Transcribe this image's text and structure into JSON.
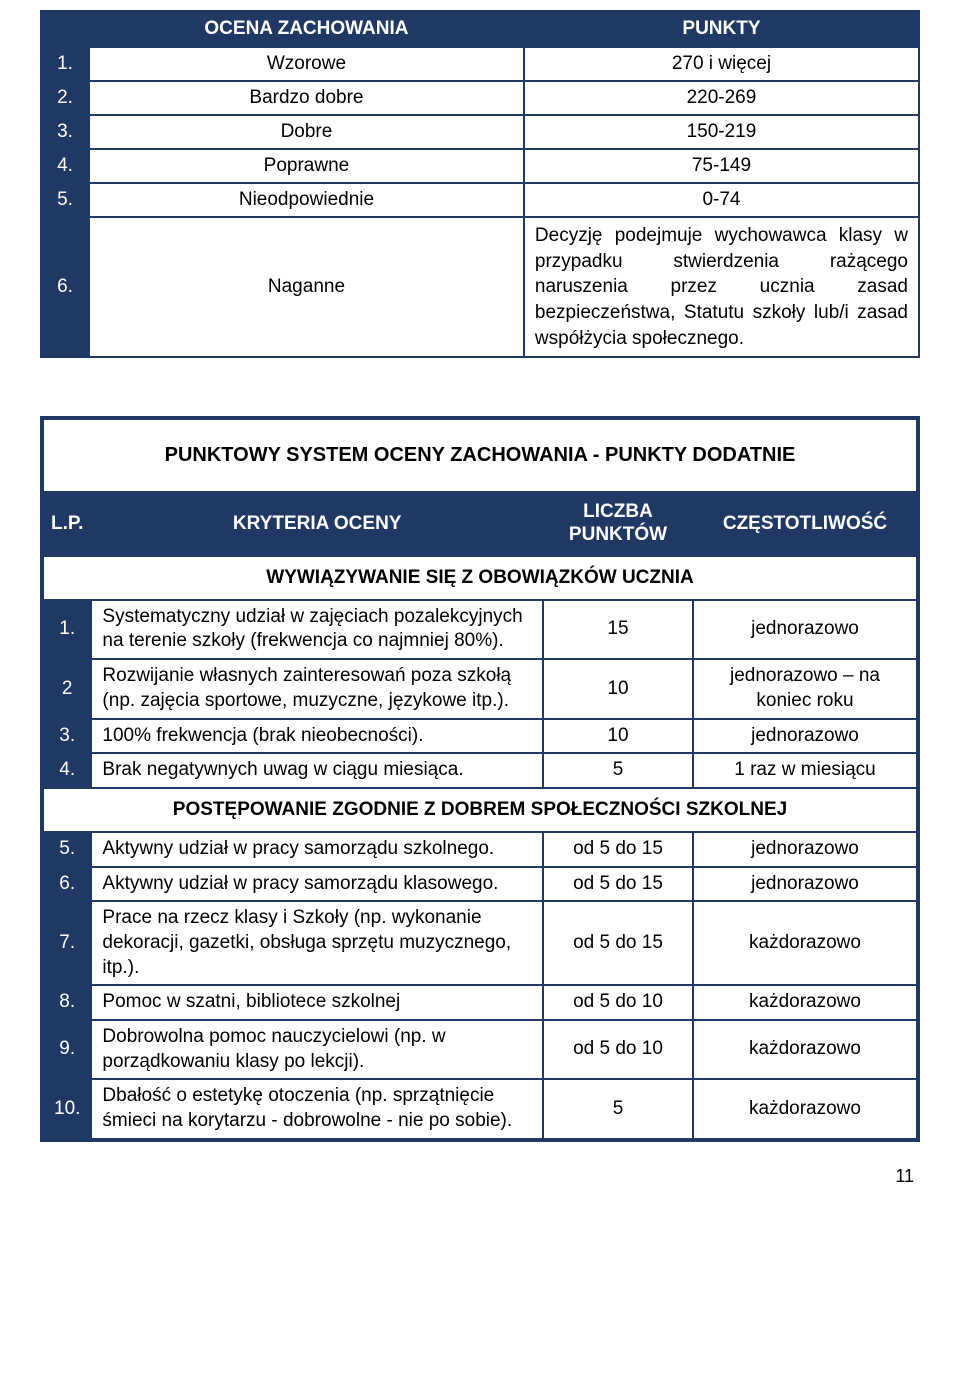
{
  "table1": {
    "header1": "OCENA ZACHOWANIA",
    "header2": "PUNKTY",
    "rows": [
      {
        "n": "1.",
        "name": "Wzorowe",
        "pts": "270 i więcej"
      },
      {
        "n": "2.",
        "name": "Bardzo dobre",
        "pts": "220-269"
      },
      {
        "n": "3.",
        "name": "Dobre",
        "pts": "150-219"
      },
      {
        "n": "4.",
        "name": "Poprawne",
        "pts": "75-149"
      },
      {
        "n": "5.",
        "name": "Nieodpowiednie",
        "pts": "0-74"
      },
      {
        "n": "6.",
        "name": "Naganne",
        "pts": "Decyzję podejmuje wychowawca klasy w przypadku stwierdzenia rażącego naruszenia przez ucznia zasad bezpieczeństwa, Statutu szkoły lub/i zasad współżycia społecznego."
      }
    ]
  },
  "table2": {
    "title": "PUNKTOWY SYSTEM OCENY ZACHOWANIA - PUNKTY DODATNIE",
    "headers": {
      "lp": "L.P.",
      "kr": "KRYTERIA OCENY",
      "pk": "LICZBA PUNKTÓW",
      "cz": "CZĘSTOTLIWOŚĆ"
    },
    "section1": "WYWIĄZYWANIE SIĘ Z OBOWIĄZKÓW UCZNIA",
    "rows1": [
      {
        "n": "1.",
        "kr": "Systematyczny udział w zajęciach pozalekcyjnych na terenie szkoły (frekwencja co najmniej 80%).",
        "pk": "15",
        "cz": "jednorazowo"
      },
      {
        "n": "2",
        "kr": "Rozwijanie własnych zainteresowań poza szkołą (np. zajęcia sportowe, muzyczne, językowe itp.).",
        "pk": "10",
        "cz": "jednorazowo – na koniec roku"
      },
      {
        "n": "3.",
        "kr": "100% frekwencja (brak nieobecności).",
        "pk": "10",
        "cz": "jednorazowo"
      },
      {
        "n": "4.",
        "kr": "Brak negatywnych uwag w ciągu miesiąca.",
        "pk": "5",
        "cz": "1 raz w miesiącu"
      }
    ],
    "section2": "POSTĘPOWANIE ZGODNIE Z DOBREM SPOŁECZNOŚCI SZKOLNEJ",
    "rows2": [
      {
        "n": "5.",
        "kr": "Aktywny udział w pracy samorządu szkolnego.",
        "pk": "od 5 do 15",
        "cz": "jednorazowo"
      },
      {
        "n": "6.",
        "kr": "Aktywny udział w pracy samorządu klasowego.",
        "pk": "od 5 do 15",
        "cz": "jednorazowo"
      },
      {
        "n": "7.",
        "kr": "Prace na rzecz klasy i Szkoły (np. wykonanie dekoracji, gazetki, obsługa sprzętu muzycznego, itp.).",
        "pk": "od 5 do 15",
        "cz": "każdorazowo"
      },
      {
        "n": "8.",
        "kr": "Pomoc w szatni, bibliotece szkolnej",
        "pk": "od 5 do 10",
        "cz": "każdorazowo"
      },
      {
        "n": "9.",
        "kr": "Dobrowolna pomoc nauczycielowi (np. w porządkowaniu klasy po lekcji).",
        "pk": "od 5 do 10",
        "cz": "każdorazowo"
      },
      {
        "n": "10.",
        "kr": "Dbałość o estetykę otoczenia (np. sprzątnięcie śmieci na korytarzu - dobrowolne - nie po sobie).",
        "pk": "5",
        "cz": "każdorazowo"
      }
    ]
  },
  "pageNumber": "11"
}
